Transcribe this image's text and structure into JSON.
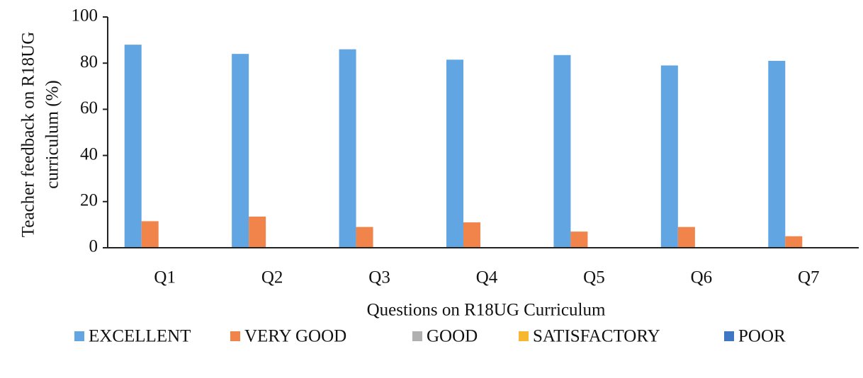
{
  "chart_data": {
    "type": "bar",
    "xlabel": "Questions on R18UG Curriculum",
    "ylabel": [
      "Teacher  feedback on R18UG",
      "curriculum (%)"
    ],
    "categories": [
      "Q1",
      "Q2",
      "Q3",
      "Q4",
      "Q5",
      "Q6",
      "Q7"
    ],
    "series": [
      {
        "name": "EXCELLENT",
        "color": "#62a5e3",
        "values": [
          88,
          84,
          86,
          81.5,
          83.5,
          79,
          81
        ]
      },
      {
        "name": "VERY GOOD",
        "color": "#f0844a",
        "values": [
          11.5,
          13.5,
          9,
          11,
          7,
          9,
          5
        ]
      },
      {
        "name": "GOOD",
        "color": "#b0b0b0",
        "values": [
          0,
          0,
          0,
          0,
          0,
          0,
          0
        ]
      },
      {
        "name": "SATISFACTORY",
        "color": "#f7b731",
        "values": [
          0,
          0,
          0,
          0,
          0,
          0,
          0
        ]
      },
      {
        "name": "POOR",
        "color": "#3f77c4",
        "values": [
          0,
          0,
          0,
          0,
          0,
          0,
          0
        ]
      }
    ],
    "ylim": [
      0,
      100
    ],
    "yticks": [
      0,
      20,
      40,
      60,
      80,
      100
    ],
    "legend": "bottom"
  }
}
